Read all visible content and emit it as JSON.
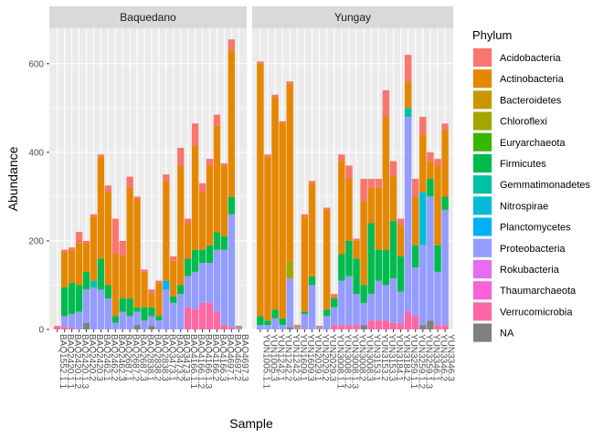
{
  "chart_data": {
    "type": "bar",
    "stacked": true,
    "xlabel": "Sample",
    "ylabel": "Abundance",
    "ylim": [
      0,
      680
    ],
    "yticks": [
      0,
      200,
      400,
      600
    ],
    "grid": true,
    "legend": {
      "title": "Phylum",
      "position": "right",
      "entries": [
        {
          "name": "Acidobacteria",
          "color": "#F8766D"
        },
        {
          "name": "Actinobacteria",
          "color": "#E58700"
        },
        {
          "name": "Bacteroidetes",
          "color": "#C99800"
        },
        {
          "name": "Chloroflexi",
          "color": "#A3A500"
        },
        {
          "name": "Euryarchaeota",
          "color": "#39B600"
        },
        {
          "name": "Firmicutes",
          "color": "#00BB4E"
        },
        {
          "name": "Gemmatimonadetes",
          "color": "#00C1A3"
        },
        {
          "name": "Nitrospirae",
          "color": "#00BCD8"
        },
        {
          "name": "Planctomycetes",
          "color": "#00B0F6"
        },
        {
          "name": "Proteobacteria",
          "color": "#959CFF"
        },
        {
          "name": "Rokubacteria",
          "color": "#E76BF3"
        },
        {
          "name": "Thaumarchaeota",
          "color": "#FB61D7"
        },
        {
          "name": "Verrucomicrobia",
          "color": "#FF67A4"
        },
        {
          "name": "NA",
          "color": "#7F7F7F"
        }
      ]
    },
    "facets": [
      {
        "name": "Baquedano",
        "samples": [
          {
            "label": "BAQ1552.1.1",
            "values": {
              "Verrucomicrobia": 5,
              "Acidobacteria": 3
            }
          },
          {
            "label": "BAQ2420.1.1",
            "values": {
              "Verrucomicrobia": 5,
              "Proteobacteria": 25,
              "Firmicutes": 65,
              "Actinobacteria": 80,
              "Acidobacteria": 5
            }
          },
          {
            "label": "BAQ2420.1.2",
            "values": {
              "Verrucomicrobia": 5,
              "Proteobacteria": 30,
              "Firmicutes": 70,
              "Actinobacteria": 75,
              "Acidobacteria": 5
            }
          },
          {
            "label": "BAQ2420.1.3",
            "values": {
              "Proteobacteria": 40,
              "Firmicutes": 60,
              "Actinobacteria": 95,
              "Acidobacteria": 25
            }
          },
          {
            "label": "BAQ2420.2",
            "values": {
              "NA": 15,
              "Proteobacteria": 75,
              "Firmicutes": 40,
              "Actinobacteria": 65,
              "Acidobacteria": 5
            }
          },
          {
            "label": "BAQ2420.3",
            "values": {
              "Proteobacteria": 95,
              "Gemmatimonadetes": 15,
              "Actinobacteria": 145,
              "Acidobacteria": 5
            }
          },
          {
            "label": "BAQ2462.1",
            "values": {
              "Proteobacteria": 90,
              "Firmicutes": 70,
              "Actinobacteria": 230,
              "Acidobacteria": 5
            }
          },
          {
            "label": "BAQ2462.2",
            "values": {
              "Proteobacteria": 70,
              "Firmicutes": 30,
              "Actinobacteria": 210,
              "Acidobacteria": 15
            }
          },
          {
            "label": "BAQ2462.3",
            "values": {
              "Proteobacteria": 15,
              "Firmicutes": 15,
              "Actinobacteria": 140,
              "Acidobacteria": 80
            }
          },
          {
            "label": "BAQ2687.1",
            "values": {
              "Proteobacteria": 40,
              "Firmicutes": 30,
              "Actinobacteria": 95,
              "Acidobacteria": 35
            }
          },
          {
            "label": "BAQ2687.2",
            "values": {
              "Proteobacteria": 30,
              "Firmicutes": 40,
              "Actinobacteria": 250,
              "Acidobacteria": 25
            }
          },
          {
            "label": "BAQ2687.3",
            "values": {
              "NA": 10,
              "Proteobacteria": 30,
              "Firmicutes": 10,
              "Actinobacteria": 245,
              "Acidobacteria": 5
            }
          },
          {
            "label": "BAQ2838.1",
            "values": {
              "Proteobacteria": 20,
              "Firmicutes": 30,
              "Actinobacteria": 80,
              "Acidobacteria": 5
            }
          },
          {
            "label": "BAQ2838.2",
            "values": {
              "NA": 8,
              "Proteobacteria": 22,
              "Firmicutes": 20,
              "Actinobacteria": 30,
              "Acidobacteria": 10
            }
          },
          {
            "label": "BAQ2838.3",
            "values": {
              "Proteobacteria": 20,
              "Firmicutes": 10,
              "Actinobacteria": 75,
              "Acidobacteria": 5
            }
          },
          {
            "label": "BAQ3473.1",
            "values": {
              "Proteobacteria": 90,
              "Planctomycetes": 20,
              "Actinobacteria": 225,
              "Acidobacteria": 15
            }
          },
          {
            "label": "BAQ3473.2",
            "values": {
              "Proteobacteria": 60,
              "Firmicutes": 15,
              "Actinobacteria": 80,
              "Acidobacteria": 10
            }
          },
          {
            "label": "BAQ3473.3",
            "values": {
              "Proteobacteria": 80,
              "Firmicutes": 20,
              "Actinobacteria": 270,
              "Acidobacteria": 40
            }
          },
          {
            "label": "BAQ4166.1.1",
            "values": {
              "Verrucomicrobia": 50,
              "Proteobacteria": 70,
              "Firmicutes": 40,
              "Actinobacteria": 80,
              "Acidobacteria": 10
            }
          },
          {
            "label": "BAQ4166.1.2",
            "values": {
              "Verrucomicrobia": 45,
              "Proteobacteria": 85,
              "Firmicutes": 50,
              "Actinobacteria": 235,
              "Acidobacteria": 50
            }
          },
          {
            "label": "BAQ4166.1.3",
            "values": {
              "Verrucomicrobia": 60,
              "Proteobacteria": 90,
              "Firmicutes": 30,
              "Actinobacteria": 130,
              "Acidobacteria": 20
            }
          },
          {
            "label": "BAQ4166.2",
            "values": {
              "Verrucomicrobia": 60,
              "Proteobacteria": 90,
              "Firmicutes": 40,
              "Actinobacteria": 180,
              "Acidobacteria": 15
            }
          },
          {
            "label": "BAQ4166.3",
            "values": {
              "Verrucomicrobia": 40,
              "Proteobacteria": 140,
              "Firmicutes": 40,
              "Actinobacteria": 240,
              "Acidobacteria": 25
            }
          },
          {
            "label": "BAQ4697.1",
            "values": {
              "Verrucomicrobia": 10,
              "Proteobacteria": 170,
              "Firmicutes": 30,
              "Actinobacteria": 160,
              "Acidobacteria": 5
            }
          },
          {
            "label": "BAQ4697.2",
            "values": {
              "Verrucomicrobia": 5,
              "Proteobacteria": 255,
              "Firmicutes": 40,
              "Actinobacteria": 330,
              "Acidobacteria": 25
            }
          },
          {
            "label": "BAQ4697.3",
            "values": {
              "Proteobacteria": 5,
              "Actinobacteria": 3
            }
          }
        ]
      },
      {
        "name": "Yungay",
        "samples": [
          {
            "label": "YUN1005.1.1",
            "values": {
              "Proteobacteria": 10,
              "Firmicutes": 20,
              "Actinobacteria": 570,
              "Acidobacteria": 5
            }
          },
          {
            "label": "YUN1005.3",
            "values": {
              "Proteobacteria": 10,
              "Firmicutes": 10,
              "Actinobacteria": 370,
              "Acidobacteria": 5
            }
          },
          {
            "label": "YUN1242.1",
            "values": {
              "Proteobacteria": 25,
              "Firmicutes": 20,
              "Actinobacteria": 480,
              "Acidobacteria": 5
            }
          },
          {
            "label": "YUN1242.2",
            "values": {
              "Proteobacteria": 10,
              "Firmicutes": 15,
              "Actinobacteria": 440,
              "Acidobacteria": 5
            }
          },
          {
            "label": "YUN1242.3",
            "values": {
              "NA": 5,
              "Proteobacteria": 110,
              "Chloroflexi": 40,
              "Actinobacteria": 400,
              "Acidobacteria": 5
            }
          },
          {
            "label": "YUN1609.1",
            "values": {
              "Proteobacteria": 5,
              "Actinobacteria": 5
            }
          },
          {
            "label": "YUN1609.3",
            "values": {
              "Proteobacteria": 35,
              "Firmicutes": 5,
              "Actinobacteria": 215,
              "Acidobacteria": 5
            }
          },
          {
            "label": "YUN2029.1",
            "values": {
              "Proteobacteria": 100,
              "Firmicutes": 20,
              "Actinobacteria": 210,
              "Acidobacteria": 5
            }
          },
          {
            "label": "YUN2029.2",
            "values": {
              "Proteobacteria": 5,
              "Actinobacteria": 3
            }
          },
          {
            "label": "YUN2029.3",
            "values": {
              "Proteobacteria": 30,
              "Firmicutes": 15,
              "Actinobacteria": 225,
              "Acidobacteria": 5
            }
          },
          {
            "label": "YUN3008.1.1",
            "values": {
              "Verrucomicrobia": 10,
              "Proteobacteria": 40,
              "Firmicutes": 20,
              "Actinobacteria": 5,
              "Acidobacteria": 5
            }
          },
          {
            "label": "YUN3008.1.2",
            "values": {
              "Verrucomicrobia": 10,
              "Proteobacteria": 100,
              "Firmicutes": 60,
              "Actinobacteria": 210,
              "Acidobacteria": 15
            }
          },
          {
            "label": "YUN3008.1.3",
            "values": {
              "Verrucomicrobia": 10,
              "Proteobacteria": 110,
              "Firmicutes": 80,
              "Actinobacteria": 140,
              "Acidobacteria": 30
            }
          },
          {
            "label": "YUN3008.2",
            "values": {
              "Verrucomicrobia": 10,
              "Proteobacteria": 70,
              "Firmicutes": 80,
              "Actinobacteria": 40,
              "Acidobacteria": 5
            }
          },
          {
            "label": "YUN3008.3",
            "values": {
              "NA": 10,
              "Proteobacteria": 50,
              "Firmicutes": 40,
              "Actinobacteria": 190,
              "Acidobacteria": 50
            }
          },
          {
            "label": "YUN3153.1",
            "values": {
              "Verrucomicrobia": 20,
              "Proteobacteria": 60,
              "Firmicutes": 160,
              "Actinobacteria": 80,
              "Acidobacteria": 20
            }
          },
          {
            "label": "YUN3153.2",
            "values": {
              "Verrucomicrobia": 20,
              "Proteobacteria": 90,
              "Firmicutes": 70,
              "Actinobacteria": 140,
              "Acidobacteria": 20
            }
          },
          {
            "label": "YUN3153.3",
            "values": {
              "Verrucomicrobia": 20,
              "Proteobacteria": 80,
              "Firmicutes": 80,
              "Actinobacteria": 300,
              "Acidobacteria": 60
            }
          },
          {
            "label": "YUN3184.1",
            "values": {
              "Verrucomicrobia": 15,
              "Proteobacteria": 100,
              "Firmicutes": 130,
              "Actinobacteria": 100,
              "Acidobacteria": 35
            }
          },
          {
            "label": "YUN3184.2",
            "values": {
              "Verrucomicrobia": 15,
              "Proteobacteria": 70,
              "Firmicutes": 80,
              "Actinobacteria": 70,
              "Acidobacteria": 15
            }
          },
          {
            "label": "YUN3259.1.1",
            "values": {
              "Verrucomicrobia": 40,
              "Proteobacteria": 440,
              "Gemmatimonadetes": 20,
              "Actinobacteria": 60,
              "Acidobacteria": 60
            }
          },
          {
            "label": "YUN3259.1.2",
            "values": {
              "Verrucomicrobia": 30,
              "Proteobacteria": 110,
              "Firmicutes": 50,
              "Actinobacteria": 110,
              "Acidobacteria": 40
            }
          },
          {
            "label": "YUN3259.1.3",
            "values": {
              "NA": 10,
              "Proteobacteria": 180,
              "Nitrospirae": 120,
              "Actinobacteria": 130,
              "Acidobacteria": 40
            }
          },
          {
            "label": "YUN3346.1",
            "values": {
              "NA": 20,
              "Proteobacteria": 280,
              "Firmicutes": 40,
              "Actinobacteria": 40,
              "Acidobacteria": 20
            }
          },
          {
            "label": "YUN3346.2",
            "values": {
              "Verrucomicrobia": 10,
              "Proteobacteria": 120,
              "Firmicutes": 60,
              "Actinobacteria": 180,
              "Acidobacteria": 15
            }
          },
          {
            "label": "YUN3346.3",
            "values": {
              "Verrucomicrobia": 10,
              "Proteobacteria": 260,
              "Firmicutes": 30,
              "Actinobacteria": 150,
              "Acidobacteria": 15
            }
          }
        ]
      }
    ]
  }
}
